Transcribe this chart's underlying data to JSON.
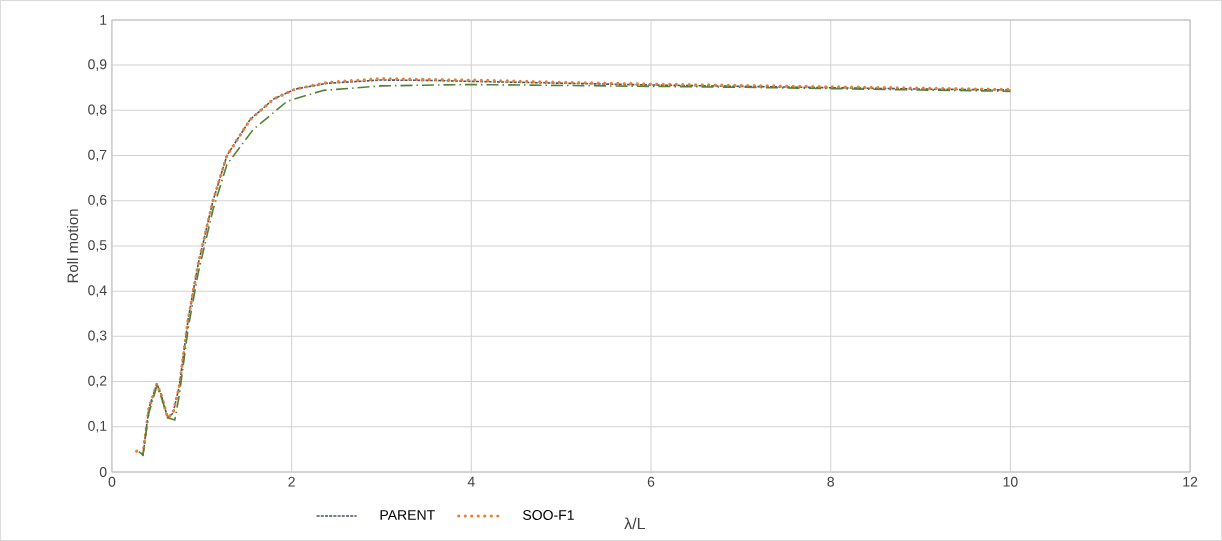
{
  "chart_data": {
    "type": "line",
    "xlabel": "λ/L",
    "ylabel": "Roll motion",
    "xlim": [
      0,
      12
    ],
    "xticks": [
      0,
      2,
      4,
      6,
      8,
      10,
      12
    ],
    "ylim": [
      0,
      1
    ],
    "yticks": [
      0,
      {
        "value": 0.1,
        "label": "0,1"
      },
      {
        "value": 0.2,
        "label": "0,2"
      },
      {
        "value": 0.3,
        "label": "0,3"
      },
      {
        "value": 0.4,
        "label": "0,4"
      },
      {
        "value": 0.5,
        "label": "0,5"
      },
      {
        "value": 0.6,
        "label": "0,6"
      },
      {
        "value": 0.7,
        "label": "0,7"
      },
      {
        "value": 0.8,
        "label": "0,8"
      },
      {
        "value": 0.9,
        "label": "0,9"
      },
      1
    ],
    "grid": true,
    "legend": "bottom",
    "marker": "none",
    "series": [
      {
        "name": "PARENT",
        "color": "#44546a",
        "line_style": "dashed",
        "x": [
          0.345,
          0.41,
          0.5,
          0.55,
          0.62,
          0.68,
          0.75,
          0.85,
          0.96,
          1.125,
          1.28,
          1.54,
          1.8,
          2.04,
          2.4,
          3,
          3.6,
          4,
          5,
          6,
          7,
          8,
          9,
          10
        ],
        "values": [
          0.035,
          0.14,
          0.195,
          0.17,
          0.12,
          0.13,
          0.19,
          0.34,
          0.46,
          0.6,
          0.7,
          0.78,
          0.825,
          0.847,
          0.86,
          0.867,
          0.866,
          0.864,
          0.86,
          0.856,
          0.853,
          0.85,
          0.847,
          0.845
        ]
      },
      {
        "name": "SOO-F1",
        "color": "#ed7d31",
        "line_style": "dotted",
        "x": [
          0.275,
          0.345,
          0.41,
          0.5,
          0.55,
          0.62,
          0.68,
          0.75,
          0.85,
          0.96,
          1.125,
          1.28,
          1.54,
          1.8,
          2.04,
          2.4,
          3,
          3.6,
          4,
          5,
          6,
          7,
          8,
          9,
          10
        ],
        "values": [
          0.046,
          0.04,
          0.14,
          0.195,
          0.17,
          0.12,
          0.13,
          0.19,
          0.34,
          0.46,
          0.6,
          0.7,
          0.78,
          0.825,
          0.847,
          0.862,
          0.87,
          0.868,
          0.867,
          0.862,
          0.858,
          0.855,
          0.852,
          0.849,
          0.846
        ]
      },
      {
        "color": "#548235",
        "line_style": "dashdot",
        "x": [
          0.3,
          0.345,
          0.41,
          0.5,
          0.55,
          0.62,
          0.7,
          0.75,
          0.85,
          0.96,
          1.125,
          1.28,
          1.57,
          1.95,
          2.35,
          3,
          3.6,
          4,
          5,
          6,
          7,
          8,
          9,
          10
        ],
        "values": [
          0.045,
          0.038,
          0.13,
          0.19,
          0.165,
          0.12,
          0.115,
          0.17,
          0.32,
          0.44,
          0.58,
          0.68,
          0.757,
          0.82,
          0.844,
          0.854,
          0.856,
          0.857,
          0.855,
          0.853,
          0.851,
          0.848,
          0.845,
          0.842
        ]
      }
    ]
  }
}
